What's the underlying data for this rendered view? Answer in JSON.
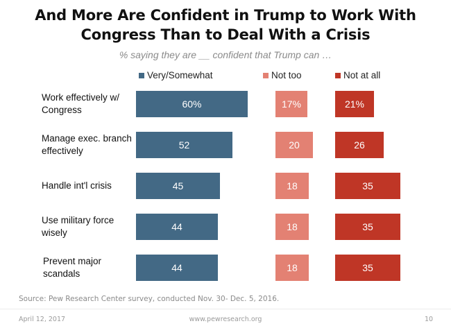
{
  "chart_data": {
    "type": "bar",
    "orientation": "horizontal",
    "layout": "side-by-side-panels",
    "title": "And More Are Confident in Trump to Work With Congress Than to Deal With a Crisis",
    "subtitle": "% saying they are __ confident that Trump can …",
    "categories": [
      "Work effectively w/ Congress",
      "Manage exec. branch effectively",
      "Handle int'l crisis",
      "Use military force wisely",
      "Prevent major scandals"
    ],
    "series": [
      {
        "name": "Very/Somewhat",
        "color": "#436985",
        "values": [
          60,
          52,
          45,
          44,
          44
        ],
        "labels": [
          "60%",
          "52",
          "45",
          "44",
          "44"
        ]
      },
      {
        "name": "Not too",
        "color": "#e38173",
        "values": [
          17,
          20,
          18,
          18,
          18
        ],
        "labels": [
          "17%",
          "20",
          "18",
          "18",
          "18"
        ]
      },
      {
        "name": "Not at all",
        "color": "#bf3626",
        "values": [
          21,
          26,
          35,
          35,
          35
        ],
        "labels": [
          "21%",
          "26",
          "35",
          "35",
          "35"
        ]
      }
    ],
    "legend_position": "top",
    "grid": false,
    "xlabel": "",
    "ylabel": ""
  },
  "labels": {
    "row_labels": [
      [
        "Work effectively w/",
        "Congress"
      ],
      [
        "Manage exec. branch",
        "effectively"
      ],
      [
        "Handle int'l crisis"
      ],
      [
        "Use military force",
        "wisely"
      ],
      [
        "Prevent major",
        "scandals"
      ]
    ]
  },
  "source": "Source: Pew Research Center survey, conducted Nov. 30- Dec. 5, 2016.",
  "footer": {
    "date": "April 12, 2017",
    "url": "www.pewresearch.org",
    "page": "10"
  }
}
